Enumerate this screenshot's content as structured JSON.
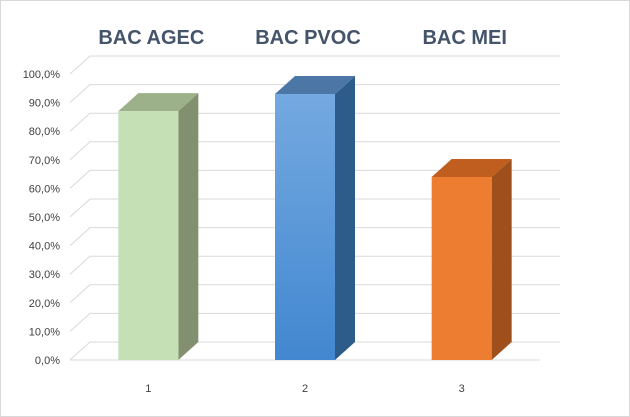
{
  "chart_data": {
    "type": "bar",
    "categories": [
      "1",
      "2",
      "3"
    ],
    "series": [
      {
        "values": [
          0.87,
          0.93,
          0.64
        ]
      }
    ],
    "bar_titles": [
      "BAC AGEC",
      "BAC PVOC",
      "BAC MEI"
    ],
    "y_ticks": [
      "0,0%",
      "10,0%",
      "20,0%",
      "30,0%",
      "40,0%",
      "50,0%",
      "60,0%",
      "70,0%",
      "80,0%",
      "90,0%",
      "100,0%"
    ],
    "ylim": [
      0,
      1
    ],
    "grid": true,
    "three_d": true,
    "colors": {
      "bars": [
        {
          "front": "#c5e0b4",
          "side": "#82906f",
          "top": "#9cb08a"
        },
        {
          "front_top": "#74a9e0",
          "front_bottom": "#4287d0",
          "side": "#2e5c8a",
          "top": "#4c76a6"
        },
        {
          "front": "#ed7d31",
          "side": "#9e4f1c",
          "top": "#c05e1f"
        }
      ],
      "title_text": "#44546a",
      "tick_text": "#404040",
      "grid": "#d9d9d9"
    }
  }
}
